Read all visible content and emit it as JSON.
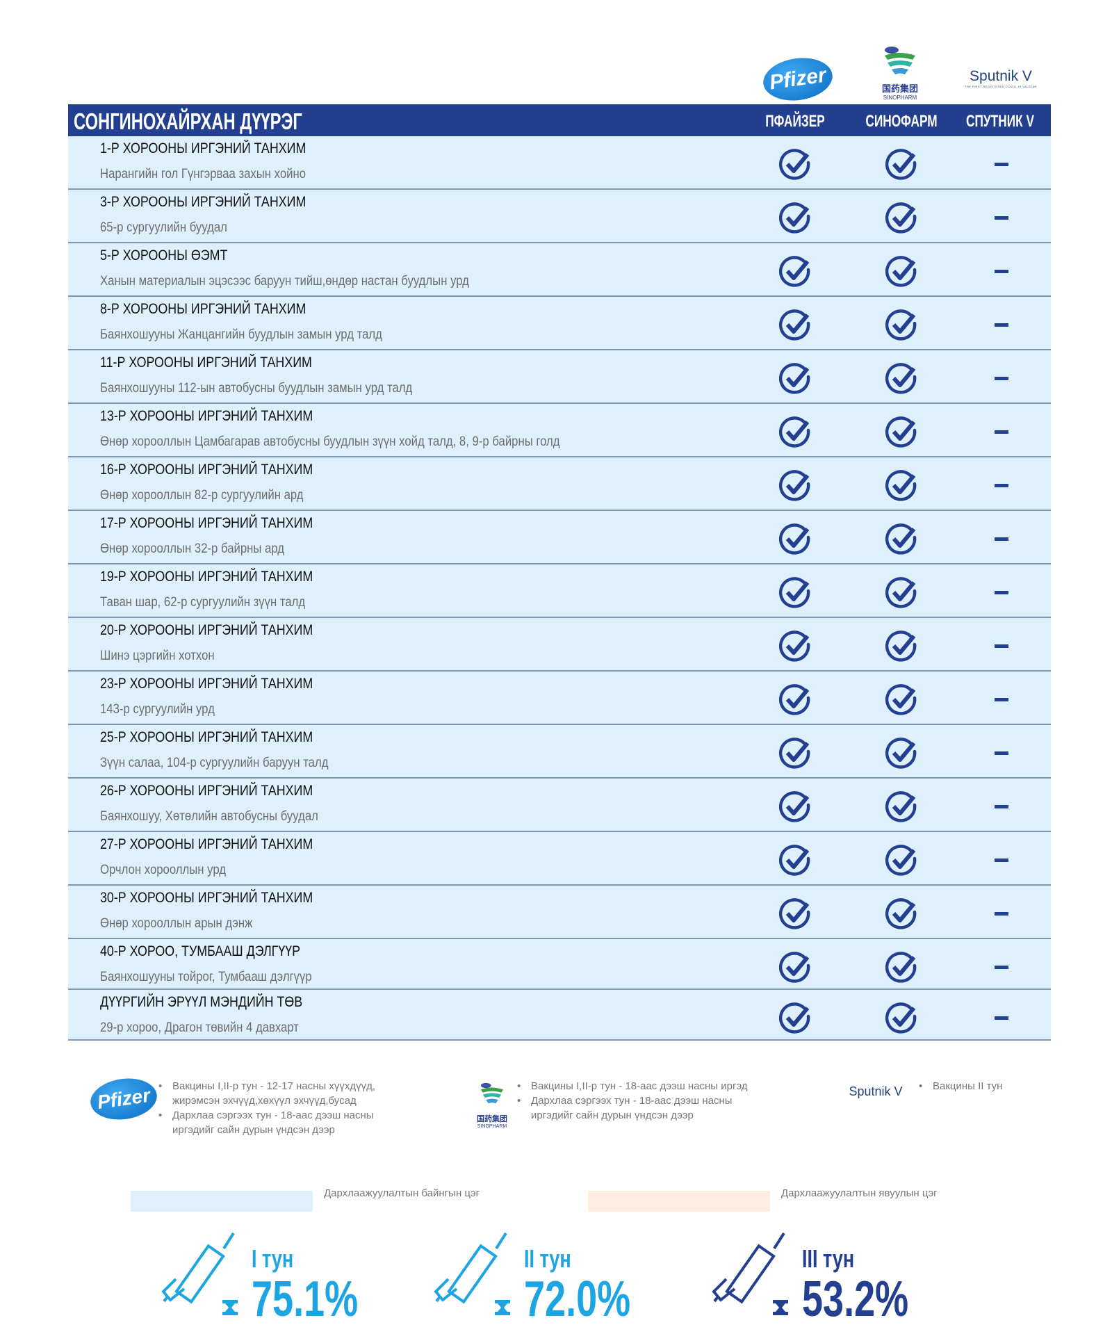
{
  "logos": {
    "pfizer": "Pfizer",
    "sinopharm_cn": "国药集团",
    "sinopharm_en": "SINOPHARM",
    "sputnik": "Sputnik V",
    "sputnik_sub": "THE FIRST REGISTERED COVID-19 VACCINE"
  },
  "header": {
    "title": "СОНГИНОХАЙРХАН ДҮҮРЭГ",
    "columns": [
      "ПФАЙЗЕР",
      "СИНОФАРМ",
      "СПУТНИК V"
    ]
  },
  "colors": {
    "header": "#233f8f",
    "row": "#def0fb",
    "mobile": "#fdeee0",
    "check": "#233f8f",
    "dose_light": "#1ca4e3",
    "dose_dark": "#233f8f"
  },
  "rows": [
    {
      "name": "1-Р ХОРООНЫ ИРГЭНИЙ ТАНХИМ",
      "address": "Нарангийн гол Гүнгэрваа захын хойно",
      "pfizer": true,
      "sinopharm": true,
      "sputnik": false
    },
    {
      "name": "3-Р ХОРООНЫ ИРГЭНИЙ ТАНХИМ",
      "address": "65-р сургуулийн буудал",
      "pfizer": true,
      "sinopharm": true,
      "sputnik": false
    },
    {
      "name": "5-Р ХОРООНЫ ӨЭМТ",
      "address": "Ханын материалын эцэсээс баруун тийш,өндөр настан буудлын урд",
      "pfizer": true,
      "sinopharm": true,
      "sputnik": false
    },
    {
      "name": "8-Р ХОРООНЫ ИРГЭНИЙ ТАНХИМ",
      "address": "Баянхошууны Жанцангийн буудлын замын урд талд",
      "pfizer": true,
      "sinopharm": true,
      "sputnik": false
    },
    {
      "name": "11-Р ХОРООНЫ ИРГЭНИЙ ТАНХИМ",
      "address": "Баянхошууны 112-ын автобусны буудлын замын урд талд",
      "pfizer": true,
      "sinopharm": true,
      "sputnik": false
    },
    {
      "name": "13-Р ХОРООНЫ ИРГЭНИЙ ТАНХИМ",
      "address": "Өнөр хорооллын Цамбагарав автобусны буудлын зүүн хойд талд, 8, 9-р байрны голд",
      "pfizer": true,
      "sinopharm": true,
      "sputnik": false
    },
    {
      "name": "16-Р ХОРООНЫ ИРГЭНИЙ ТАНХИМ",
      "address": "Өнөр хорооллын 82-р сургуулийн ард",
      "pfizer": true,
      "sinopharm": true,
      "sputnik": false
    },
    {
      "name": "17-Р ХОРООНЫ ИРГЭНИЙ ТАНХИМ",
      "address": "Өнөр хорооллын 32-р байрны ард",
      "pfizer": true,
      "sinopharm": true,
      "sputnik": false
    },
    {
      "name": "19-Р ХОРООНЫ ИРГЭНИЙ ТАНХИМ",
      "address": "Таван шар, 62-р сургуулийн зүүн талд",
      "pfizer": true,
      "sinopharm": true,
      "sputnik": false
    },
    {
      "name": "20-Р ХОРООНЫ ИРГЭНИЙ ТАНХИМ",
      "address": "Шинэ цэргийн хотхон",
      "pfizer": true,
      "sinopharm": true,
      "sputnik": false
    },
    {
      "name": "23-Р ХОРООНЫ ИРГЭНИЙ ТАНХИМ",
      "address": "143-р сургуулийн урд",
      "pfizer": true,
      "sinopharm": true,
      "sputnik": false
    },
    {
      "name": "25-Р ХОРООНЫ ИРГЭНИЙ ТАНХИМ",
      "address": "Зүүн салаа, 104-р сургуулийн баруун талд",
      "pfizer": true,
      "sinopharm": true,
      "sputnik": false
    },
    {
      "name": "26-Р ХОРООНЫ ИРГЭНИЙ ТАНХИМ",
      "address": "Баянхошуу, Хөтөлийн автобусны буудал",
      "pfizer": true,
      "sinopharm": true,
      "sputnik": false
    },
    {
      "name": "27-Р ХОРООНЫ ИРГЭНИЙ ТАНХИМ",
      "address": "Орчлон хорооллын урд",
      "pfizer": true,
      "sinopharm": true,
      "sputnik": false
    },
    {
      "name": "30-Р ХОРООНЫ ИРГЭНИЙ ТАНХИМ",
      "address": "Өнөр хорооллын арын дэнж",
      "pfizer": true,
      "sinopharm": true,
      "sputnik": false
    },
    {
      "name": "40-Р ХОРОО, ТУМБААШ ДЭЛГҮҮР",
      "address": "Баянхошууны тойрог, Тумбааш дэлгүүр",
      "pfizer": true,
      "sinopharm": true,
      "sputnik": false
    },
    {
      "name": "ДҮҮРГИЙН ЭРҮҮЛ МЭНДИЙН ТӨВ",
      "address": "29-р хороо, Драгон төвийн 4 давхарт",
      "pfizer": true,
      "sinopharm": true,
      "sputnik": false
    }
  ],
  "legend": {
    "pfizer": [
      "Вакцины I,II-р тун - 12-17 насны хүүхдүүд, жирэмсэн эхчүүд,хөхүүл эхчүүд,бусад",
      "Дархлаа сэргээх тун - 18-аас дээш насны иргэдийг сайн дурын үндсэн дээр"
    ],
    "sinopharm": [
      "Вакцины I,II-р тун - 18-аас дээш насны иргэд",
      "Дархлаа сэргээх тун - 18-аас дээш насны иргэдийг сайн дурын үндсэн дээр"
    ],
    "sputnik": [
      "Вакцины II тун"
    ]
  },
  "site_types": {
    "fixed": "Дархлаажуулалтын байнгын цэг",
    "mobile": "Дархлаажуулалтын явуулын цэг"
  },
  "doses": [
    {
      "label": "I тун",
      "percent": "75.1%"
    },
    {
      "label": "II тун",
      "percent": "72.0%"
    },
    {
      "label": "III тун",
      "percent": "53.2%"
    }
  ]
}
